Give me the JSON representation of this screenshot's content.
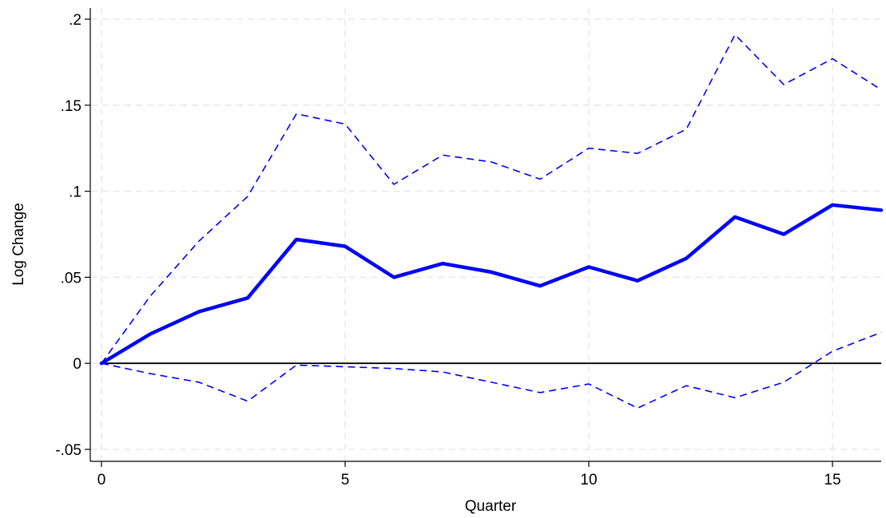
{
  "chart_data": {
    "type": "line",
    "title": "",
    "xlabel": "Quarter",
    "ylabel": "Log Change",
    "xlim": [
      0,
      16
    ],
    "ylim": [
      -0.05,
      0.2
    ],
    "x_ticks": [
      0,
      5,
      10,
      15
    ],
    "x_tick_labels": [
      "0",
      "5",
      "10",
      "15"
    ],
    "y_ticks": [
      -0.05,
      0,
      0.05,
      0.1,
      0.15,
      0.2
    ],
    "y_tick_labels": [
      "-.05",
      "0",
      ".05",
      ".1",
      ".15",
      ".2"
    ],
    "grid": true,
    "reference_line_y": 0,
    "x": [
      0,
      1,
      2,
      3,
      4,
      5,
      6,
      7,
      8,
      9,
      10,
      11,
      12,
      13,
      14,
      15,
      16
    ],
    "series": [
      {
        "role": "estimate",
        "style": "solid",
        "color": "#0000ff",
        "values": [
          0,
          0.017,
          0.03,
          0.038,
          0.072,
          0.068,
          0.05,
          0.058,
          0.053,
          0.045,
          0.056,
          0.048,
          0.061,
          0.085,
          0.075,
          0.092,
          0.089
        ]
      },
      {
        "role": "upper-bound",
        "style": "dashed",
        "color": "#0000ff",
        "values": [
          0,
          0.039,
          0.071,
          0.097,
          0.145,
          0.139,
          0.104,
          0.121,
          0.117,
          0.107,
          0.125,
          0.122,
          0.136,
          0.191,
          0.162,
          0.177,
          0.159
        ]
      },
      {
        "role": "lower-bound",
        "style": "dashed",
        "color": "#0000ff",
        "values": [
          0,
          -0.006,
          -0.011,
          -0.022,
          -0.001,
          -0.002,
          -0.003,
          -0.005,
          -0.011,
          -0.017,
          -0.012,
          -0.026,
          -0.013,
          -0.02,
          -0.011,
          0.007,
          0.018
        ]
      }
    ]
  },
  "colors": {
    "grid": "#e8e8e8",
    "axis": "#000000",
    "series": "#0000ff",
    "background": "#ffffff"
  }
}
